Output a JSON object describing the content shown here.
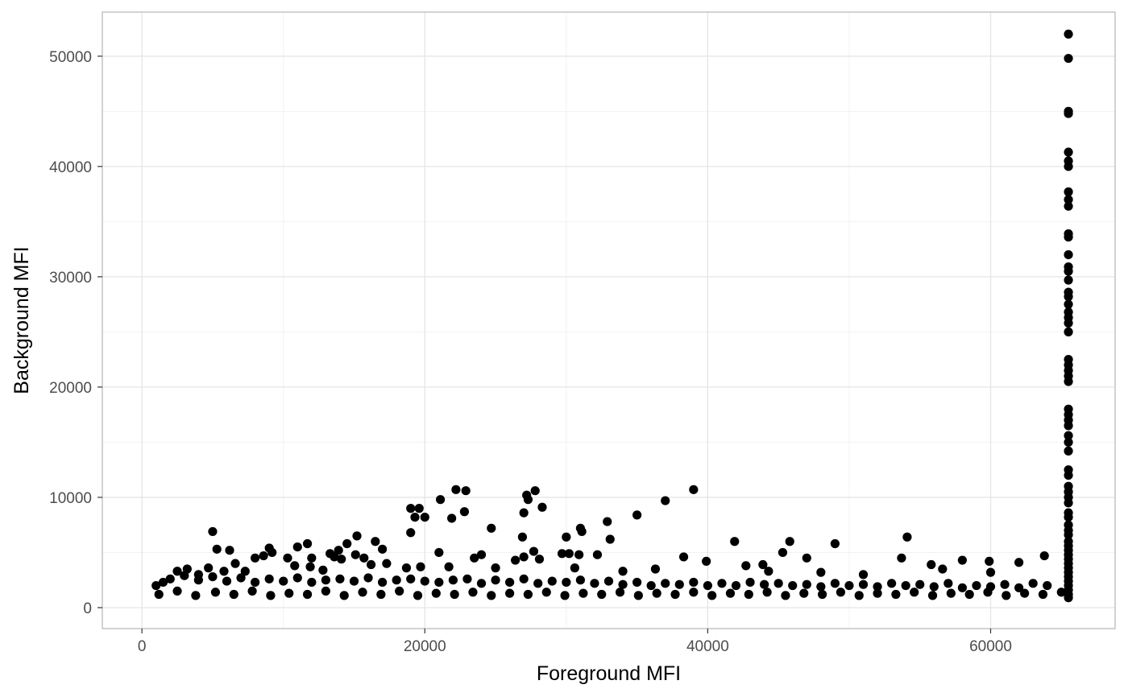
{
  "chart_data": {
    "type": "scatter",
    "title": "",
    "xlabel": "Foreground MFI",
    "ylabel": "Background MFI",
    "xlim": [
      -2800,
      68800
    ],
    "ylim": [
      -1900,
      54000
    ],
    "x_ticks": [
      0,
      20000,
      40000,
      60000
    ],
    "x_tick_labels": [
      "0",
      "20000",
      "40000",
      "60000"
    ],
    "y_ticks": [
      0,
      10000,
      20000,
      30000,
      40000,
      50000
    ],
    "y_tick_labels": [
      "0",
      "10000",
      "20000",
      "30000",
      "40000",
      "50000"
    ],
    "grid": true,
    "theme": "white background, light gray grid, gray panel border",
    "point_color": "#000000",
    "points": [
      [
        5000,
        6900
      ],
      [
        5300,
        5300
      ],
      [
        6200,
        5200
      ],
      [
        8000,
        4500
      ],
      [
        9000,
        5400
      ],
      [
        10300,
        4500
      ],
      [
        11000,
        5500
      ],
      [
        11700,
        5800
      ],
      [
        12000,
        4500
      ],
      [
        13300,
        4900
      ],
      [
        13900,
        5200
      ],
      [
        14500,
        5800
      ],
      [
        15200,
        6500
      ],
      [
        15700,
        4500
      ],
      [
        16500,
        6000
      ],
      [
        17000,
        5300
      ],
      [
        19000,
        6800
      ],
      [
        19000,
        9000
      ],
      [
        19300,
        8200
      ],
      [
        19600,
        9000
      ],
      [
        20000,
        8200
      ],
      [
        21000,
        5000
      ],
      [
        21100,
        9800
      ],
      [
        21900,
        8100
      ],
      [
        22200,
        10700
      ],
      [
        22800,
        8700
      ],
      [
        22900,
        10600
      ],
      [
        23500,
        4500
      ],
      [
        24000,
        4800
      ],
      [
        24700,
        7200
      ],
      [
        26400,
        4300
      ],
      [
        26900,
        6400
      ],
      [
        27000,
        8600
      ],
      [
        27000,
        4600
      ],
      [
        27200,
        10200
      ],
      [
        27300,
        9800
      ],
      [
        27700,
        5100
      ],
      [
        27800,
        10600
      ],
      [
        28100,
        4400
      ],
      [
        28300,
        9100
      ],
      [
        29700,
        4900
      ],
      [
        30200,
        4900
      ],
      [
        30000,
        6400
      ],
      [
        30900,
        4800
      ],
      [
        31000,
        7200
      ],
      [
        31100,
        6900
      ],
      [
        32200,
        4800
      ],
      [
        32900,
        7800
      ],
      [
        33100,
        6200
      ],
      [
        35000,
        8400
      ],
      [
        37000,
        9700
      ],
      [
        38300,
        4600
      ],
      [
        39000,
        10700
      ],
      [
        39900,
        4200
      ],
      [
        41900,
        6000
      ],
      [
        45300,
        5000
      ],
      [
        45800,
        6000
      ],
      [
        47000,
        4500
      ],
      [
        49000,
        5800
      ],
      [
        54100,
        6400
      ],
      [
        53700,
        4500
      ],
      [
        55800,
        3900
      ],
      [
        58000,
        4300
      ],
      [
        59900,
        4200
      ],
      [
        62000,
        4100
      ],
      [
        63800,
        4700
      ],
      [
        60000,
        3200
      ],
      [
        56600,
        3500
      ],
      [
        51000,
        3000
      ],
      [
        48000,
        3200
      ],
      [
        42700,
        3800
      ],
      [
        43900,
        3900
      ],
      [
        44300,
        3300
      ],
      [
        36300,
        3500
      ],
      [
        34000,
        3300
      ],
      [
        30600,
        3600
      ],
      [
        25000,
        3600
      ],
      [
        21700,
        3700
      ],
      [
        19700,
        3700
      ],
      [
        18700,
        3600
      ],
      [
        2500,
        3300
      ],
      [
        3200,
        3500
      ],
      [
        4000,
        3000
      ],
      [
        4700,
        3600
      ],
      [
        5800,
        3300
      ],
      [
        6600,
        4000
      ],
      [
        7300,
        3300
      ],
      [
        8600,
        4700
      ],
      [
        9200,
        5000
      ],
      [
        10800,
        3800
      ],
      [
        11900,
        3700
      ],
      [
        12800,
        3400
      ],
      [
        13600,
        4600
      ],
      [
        14100,
        4400
      ],
      [
        15100,
        4800
      ],
      [
        16200,
        3900
      ],
      [
        17300,
        4000
      ],
      [
        1000,
        2000
      ],
      [
        1500,
        2300
      ],
      [
        2000,
        2600
      ],
      [
        3000,
        2900
      ],
      [
        4000,
        2500
      ],
      [
        5000,
        2800
      ],
      [
        6000,
        2400
      ],
      [
        7000,
        2700
      ],
      [
        8000,
        2300
      ],
      [
        9000,
        2600
      ],
      [
        10000,
        2400
      ],
      [
        11000,
        2700
      ],
      [
        12000,
        2300
      ],
      [
        13000,
        2500
      ],
      [
        14000,
        2600
      ],
      [
        15000,
        2400
      ],
      [
        16000,
        2700
      ],
      [
        17000,
        2300
      ],
      [
        18000,
        2500
      ],
      [
        19000,
        2600
      ],
      [
        20000,
        2400
      ],
      [
        21000,
        2300
      ],
      [
        22000,
        2500
      ],
      [
        23000,
        2600
      ],
      [
        24000,
        2200
      ],
      [
        25000,
        2500
      ],
      [
        26000,
        2300
      ],
      [
        27000,
        2600
      ],
      [
        28000,
        2200
      ],
      [
        29000,
        2400
      ],
      [
        30000,
        2300
      ],
      [
        31000,
        2500
      ],
      [
        32000,
        2200
      ],
      [
        33000,
        2400
      ],
      [
        34000,
        2100
      ],
      [
        35000,
        2300
      ],
      [
        36000,
        2000
      ],
      [
        37000,
        2200
      ],
      [
        38000,
        2100
      ],
      [
        39000,
        2300
      ],
      [
        40000,
        2000
      ],
      [
        41000,
        2200
      ],
      [
        42000,
        2000
      ],
      [
        43000,
        2300
      ],
      [
        44000,
        2100
      ],
      [
        45000,
        2200
      ],
      [
        46000,
        2000
      ],
      [
        47000,
        2100
      ],
      [
        48000,
        1900
      ],
      [
        49000,
        2200
      ],
      [
        50000,
        2000
      ],
      [
        51000,
        2100
      ],
      [
        52000,
        1900
      ],
      [
        53000,
        2200
      ],
      [
        54000,
        2000
      ],
      [
        55000,
        2100
      ],
      [
        56000,
        1900
      ],
      [
        57000,
        2200
      ],
      [
        58000,
        1800
      ],
      [
        59000,
        2000
      ],
      [
        60000,
        1900
      ],
      [
        61000,
        2100
      ],
      [
        62000,
        1800
      ],
      [
        63000,
        2200
      ],
      [
        64000,
        2000
      ],
      [
        1200,
        1200
      ],
      [
        2500,
        1500
      ],
      [
        3800,
        1100
      ],
      [
        5200,
        1400
      ],
      [
        6500,
        1200
      ],
      [
        7800,
        1500
      ],
      [
        9100,
        1100
      ],
      [
        10400,
        1300
      ],
      [
        11700,
        1200
      ],
      [
        13000,
        1500
      ],
      [
        14300,
        1100
      ],
      [
        15600,
        1400
      ],
      [
        16900,
        1200
      ],
      [
        18200,
        1500
      ],
      [
        19500,
        1100
      ],
      [
        20800,
        1300
      ],
      [
        22100,
        1200
      ],
      [
        23400,
        1400
      ],
      [
        24700,
        1100
      ],
      [
        26000,
        1300
      ],
      [
        27300,
        1200
      ],
      [
        28600,
        1400
      ],
      [
        29900,
        1100
      ],
      [
        31200,
        1300
      ],
      [
        32500,
        1200
      ],
      [
        33800,
        1400
      ],
      [
        35100,
        1100
      ],
      [
        36400,
        1300
      ],
      [
        37700,
        1200
      ],
      [
        39000,
        1400
      ],
      [
        40300,
        1100
      ],
      [
        41600,
        1300
      ],
      [
        42900,
        1200
      ],
      [
        44200,
        1400
      ],
      [
        45500,
        1100
      ],
      [
        46800,
        1300
      ],
      [
        48100,
        1200
      ],
      [
        49400,
        1400
      ],
      [
        50700,
        1100
      ],
      [
        52000,
        1300
      ],
      [
        53300,
        1200
      ],
      [
        54600,
        1400
      ],
      [
        55900,
        1100
      ],
      [
        57200,
        1300
      ],
      [
        58500,
        1200
      ],
      [
        59800,
        1400
      ],
      [
        61100,
        1100
      ],
      [
        62400,
        1300
      ],
      [
        63700,
        1200
      ],
      [
        65000,
        1400
      ],
      [
        65500,
        52000
      ],
      [
        65500,
        49800
      ],
      [
        65500,
        45000
      ],
      [
        65500,
        44800
      ],
      [
        65500,
        41300
      ],
      [
        65500,
        40500
      ],
      [
        65500,
        40000
      ],
      [
        65500,
        37700
      ],
      [
        65500,
        37000
      ],
      [
        65500,
        36400
      ],
      [
        65500,
        33900
      ],
      [
        65500,
        33600
      ],
      [
        65500,
        32000
      ],
      [
        65500,
        30900
      ],
      [
        65500,
        30500
      ],
      [
        65500,
        29700
      ],
      [
        65500,
        28600
      ],
      [
        65500,
        28200
      ],
      [
        65500,
        27500
      ],
      [
        65500,
        26800
      ],
      [
        65500,
        26300
      ],
      [
        65500,
        25800
      ],
      [
        65500,
        25000
      ],
      [
        65500,
        22500
      ],
      [
        65500,
        22000
      ],
      [
        65500,
        21500
      ],
      [
        65500,
        21000
      ],
      [
        65500,
        20500
      ],
      [
        65500,
        18000
      ],
      [
        65500,
        17500
      ],
      [
        65500,
        17000
      ],
      [
        65500,
        16500
      ],
      [
        65500,
        15600
      ],
      [
        65500,
        15000
      ],
      [
        65500,
        14200
      ],
      [
        65500,
        12500
      ],
      [
        65500,
        12000
      ],
      [
        65500,
        11000
      ],
      [
        65500,
        10500
      ],
      [
        65500,
        10000
      ],
      [
        65500,
        9500
      ],
      [
        65500,
        8600
      ],
      [
        65500,
        8200
      ],
      [
        65500,
        7500
      ],
      [
        65500,
        7000
      ],
      [
        65500,
        6600
      ],
      [
        65500,
        6000
      ],
      [
        65500,
        5600
      ],
      [
        65500,
        5200
      ],
      [
        65500,
        4800
      ],
      [
        65500,
        4400
      ],
      [
        65500,
        4000
      ],
      [
        65500,
        3600
      ],
      [
        65500,
        3200
      ],
      [
        65500,
        2800
      ],
      [
        65500,
        2400
      ],
      [
        65500,
        2000
      ],
      [
        65500,
        1600
      ],
      [
        65500,
        1200
      ],
      [
        65500,
        900
      ]
    ]
  }
}
